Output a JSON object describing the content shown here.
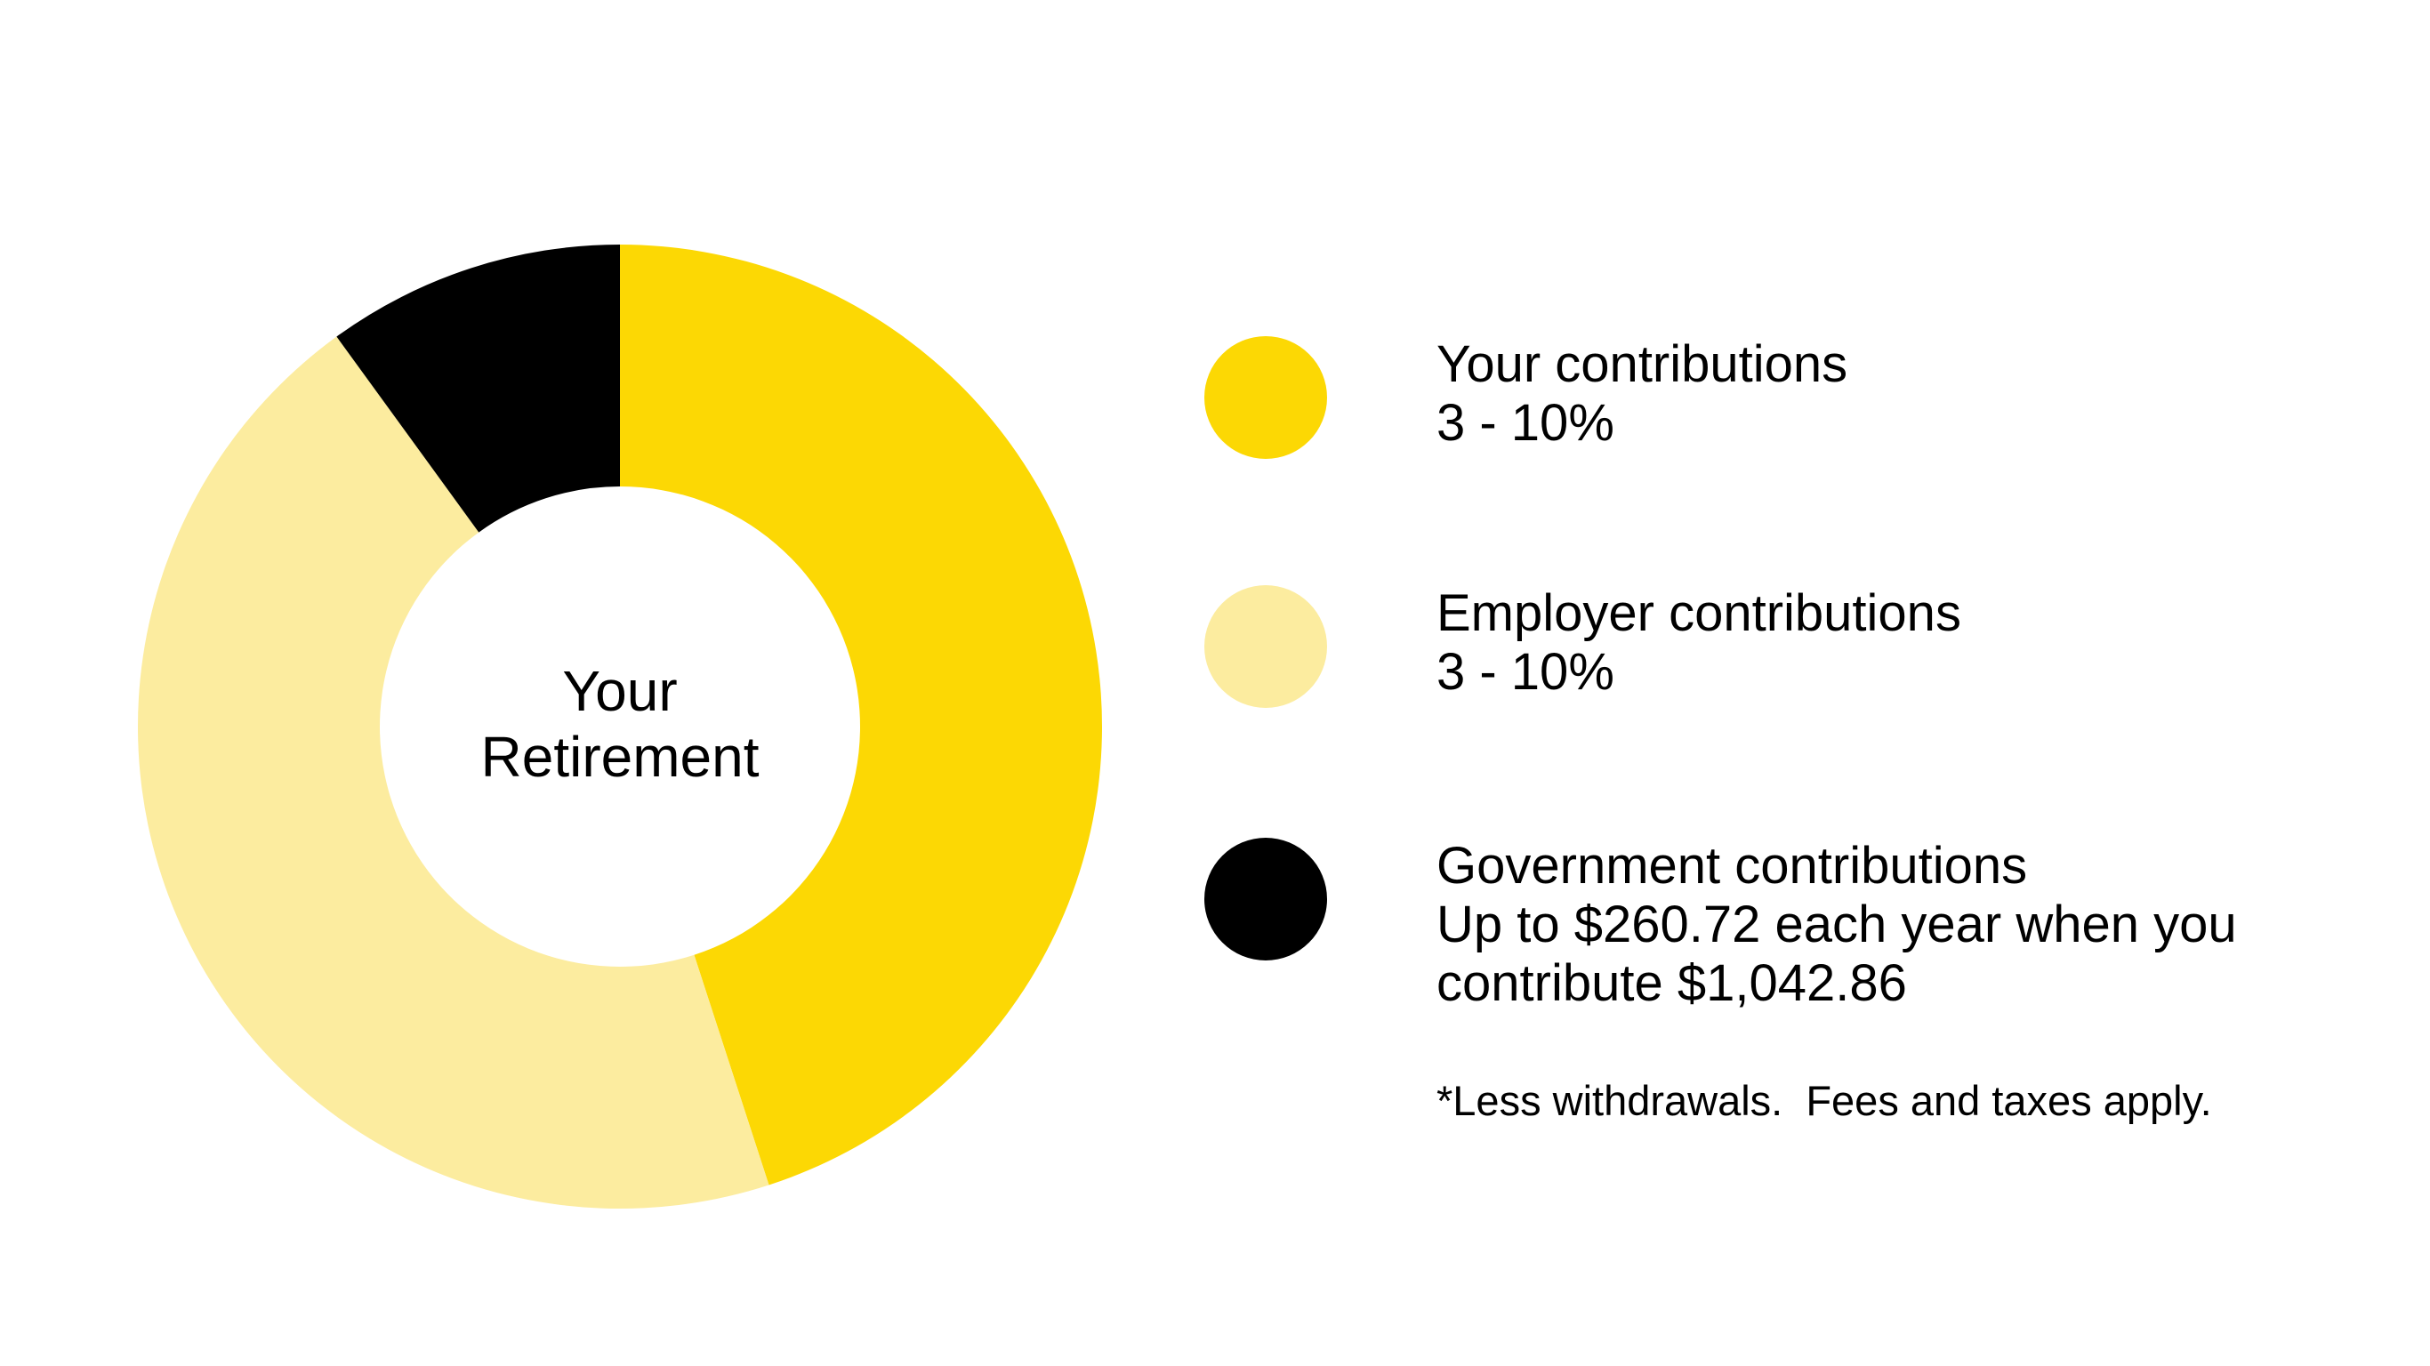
{
  "chart_data": {
    "type": "donut",
    "center_label": "Your Retirement",
    "categories": [
      "Your contributions",
      "Employer contributions",
      "Government contributions"
    ],
    "descriptions": [
      "3 - 10%",
      "3 - 10%",
      "Up to $260.72 each year when you contribute $1,042.86"
    ],
    "values": [
      45,
      45,
      10
    ],
    "colors": [
      "#fcd804",
      "#fcec9f",
      "#000000"
    ],
    "footnote": "*Less withdrawals.  Fees and taxes apply."
  }
}
